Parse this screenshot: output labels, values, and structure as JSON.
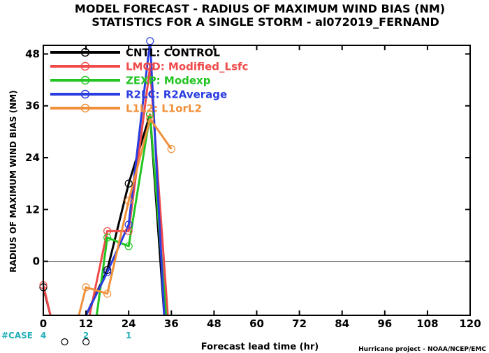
{
  "chart_data": {
    "type": "line",
    "title": "MODEL FORECAST - RADIUS OF MAXIMUM WIND BIAS (NM)",
    "subtitle": "STATISTICS FOR A SINGLE STORM - al072019_FERNAND",
    "xlabel": "Forecast lead time (hr)",
    "ylabel": "RADIUS OF MAXIMUM WIND BIAS (NM)",
    "credit": "Hurricane project - NOAA/NCEP/EMC",
    "xlim": [
      0,
      120
    ],
    "ylim": [
      -12.5,
      50
    ],
    "xticks": [
      "0",
      "12",
      "24",
      "36",
      "48",
      "60",
      "72",
      "84",
      "96",
      "108",
      "120"
    ],
    "yticks": [
      "0",
      "12",
      "24",
      "36",
      "48"
    ],
    "zero_line": true,
    "legend_position": "top-left",
    "case_label": "#CASE",
    "case_counts": [
      {
        "x": 0,
        "label": "4"
      },
      {
        "x": 12,
        "label": "2"
      },
      {
        "x": 24,
        "label": "1"
      }
    ],
    "series": [
      {
        "name": "CNTL: CONTROL",
        "color": "#000000",
        "points": [
          [
            0,
            -6
          ],
          [
            2,
            -12.5
          ],
          [
            null,
            null
          ],
          [
            12,
            -12.5
          ],
          [
            18,
            -2
          ],
          [
            24,
            18
          ],
          [
            30,
            34
          ],
          [
            34,
            -12.5
          ]
        ]
      },
      {
        "name": "LMOD: Modified_Lsfc",
        "color": "#f04a4a",
        "points": [
          [
            0,
            -5.5
          ],
          [
            2,
            -12.5
          ],
          [
            null,
            null
          ],
          [
            13,
            -12.5
          ],
          [
            18,
            7
          ],
          [
            24,
            7
          ],
          [
            30,
            45
          ],
          [
            35,
            -12.5
          ]
        ]
      },
      {
        "name": "ZEXP: Modexp",
        "color": "#22c522",
        "points": [
          [
            15,
            -12.5
          ],
          [
            18,
            5.5
          ],
          [
            24,
            3.5
          ],
          [
            30,
            34
          ],
          [
            34.5,
            -12.5
          ]
        ]
      },
      {
        "name": "R2LC: R2Average",
        "color": "#2a3de0",
        "points": [
          [
            12,
            -12.5
          ],
          [
            18,
            -2.5
          ],
          [
            24,
            8.5
          ],
          [
            30,
            51
          ],
          [
            34,
            -12.5
          ]
        ]
      },
      {
        "name": "L1L2: L1orL2",
        "color": "#f0903a",
        "points": [
          [
            10,
            -12.5
          ],
          [
            12,
            -6
          ],
          [
            18,
            -7.5
          ],
          [
            24,
            14
          ],
          [
            30,
            33
          ],
          [
            36,
            26
          ]
        ]
      }
    ],
    "below_axis_markers": [
      {
        "x": 6,
        "color": "#000000"
      },
      {
        "x": 12,
        "color": "#000000"
      }
    ]
  }
}
